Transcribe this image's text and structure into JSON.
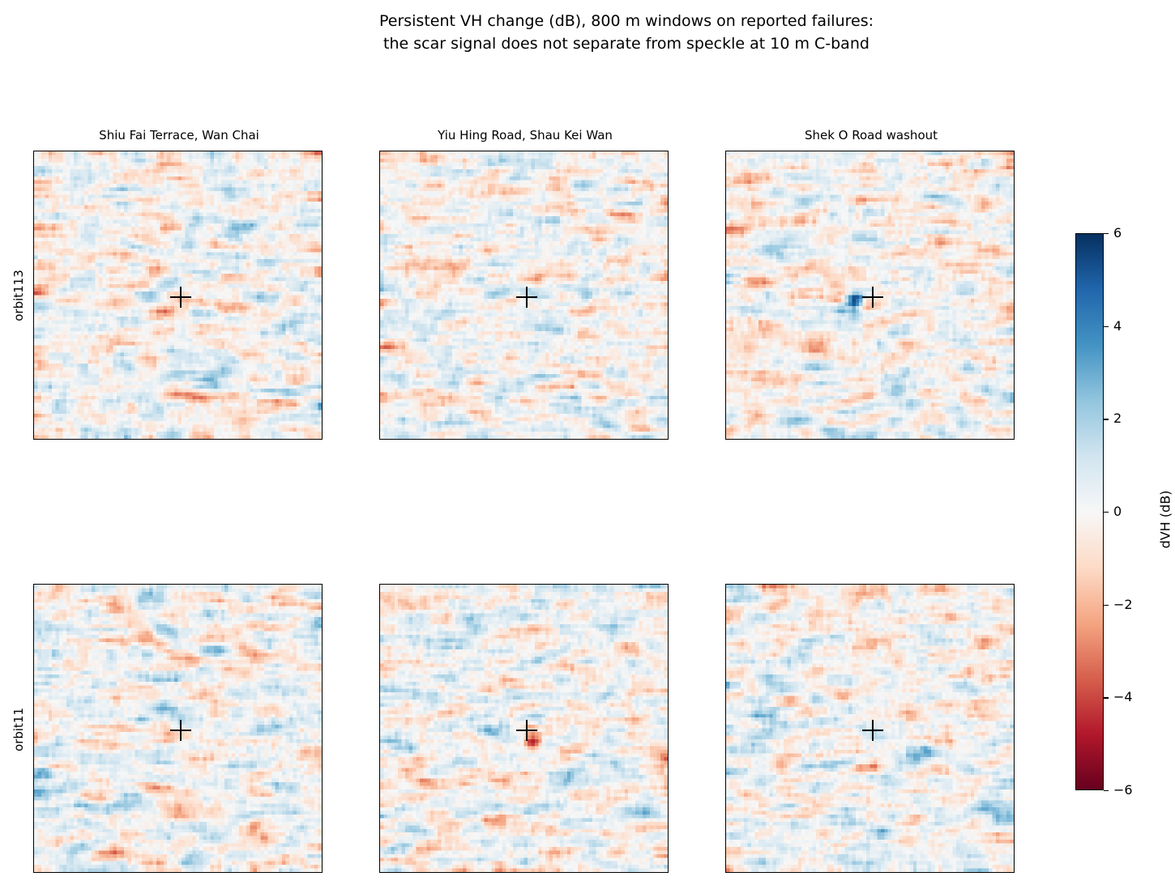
{
  "chart_data": {
    "type": "heatmap",
    "title": "Persistent VH change (dB), 800 m windows on reported failures:",
    "subtitle": "the scar signal does not separate from speckle at 10 m C-band",
    "columns": [
      "Shiu Fai Terrace, Wan Chai",
      "Yiu Hing Road, Shau Kei Wan",
      "Shek O Road washout"
    ],
    "rows": [
      "orbit113",
      "orbit11"
    ],
    "colorbar": {
      "label": "dVH (dB)",
      "colormap": "RdBu",
      "vmin": -6,
      "vmax": 6,
      "ticks": [
        "6",
        "4",
        "2",
        "0",
        "−2",
        "−4",
        "−6"
      ],
      "low_color": "#67001f",
      "mid_color": "#f7f7f7",
      "high_color": "#053061"
    },
    "grid_cells": 80,
    "marker": "+",
    "notable_features": [
      {
        "row": 0,
        "col": 2,
        "value_db": 5.5,
        "note": "strong positive patch left of marker"
      },
      {
        "row": 1,
        "col": 1,
        "value_db": -6,
        "note": "strong negative patch right of marker"
      }
    ]
  }
}
